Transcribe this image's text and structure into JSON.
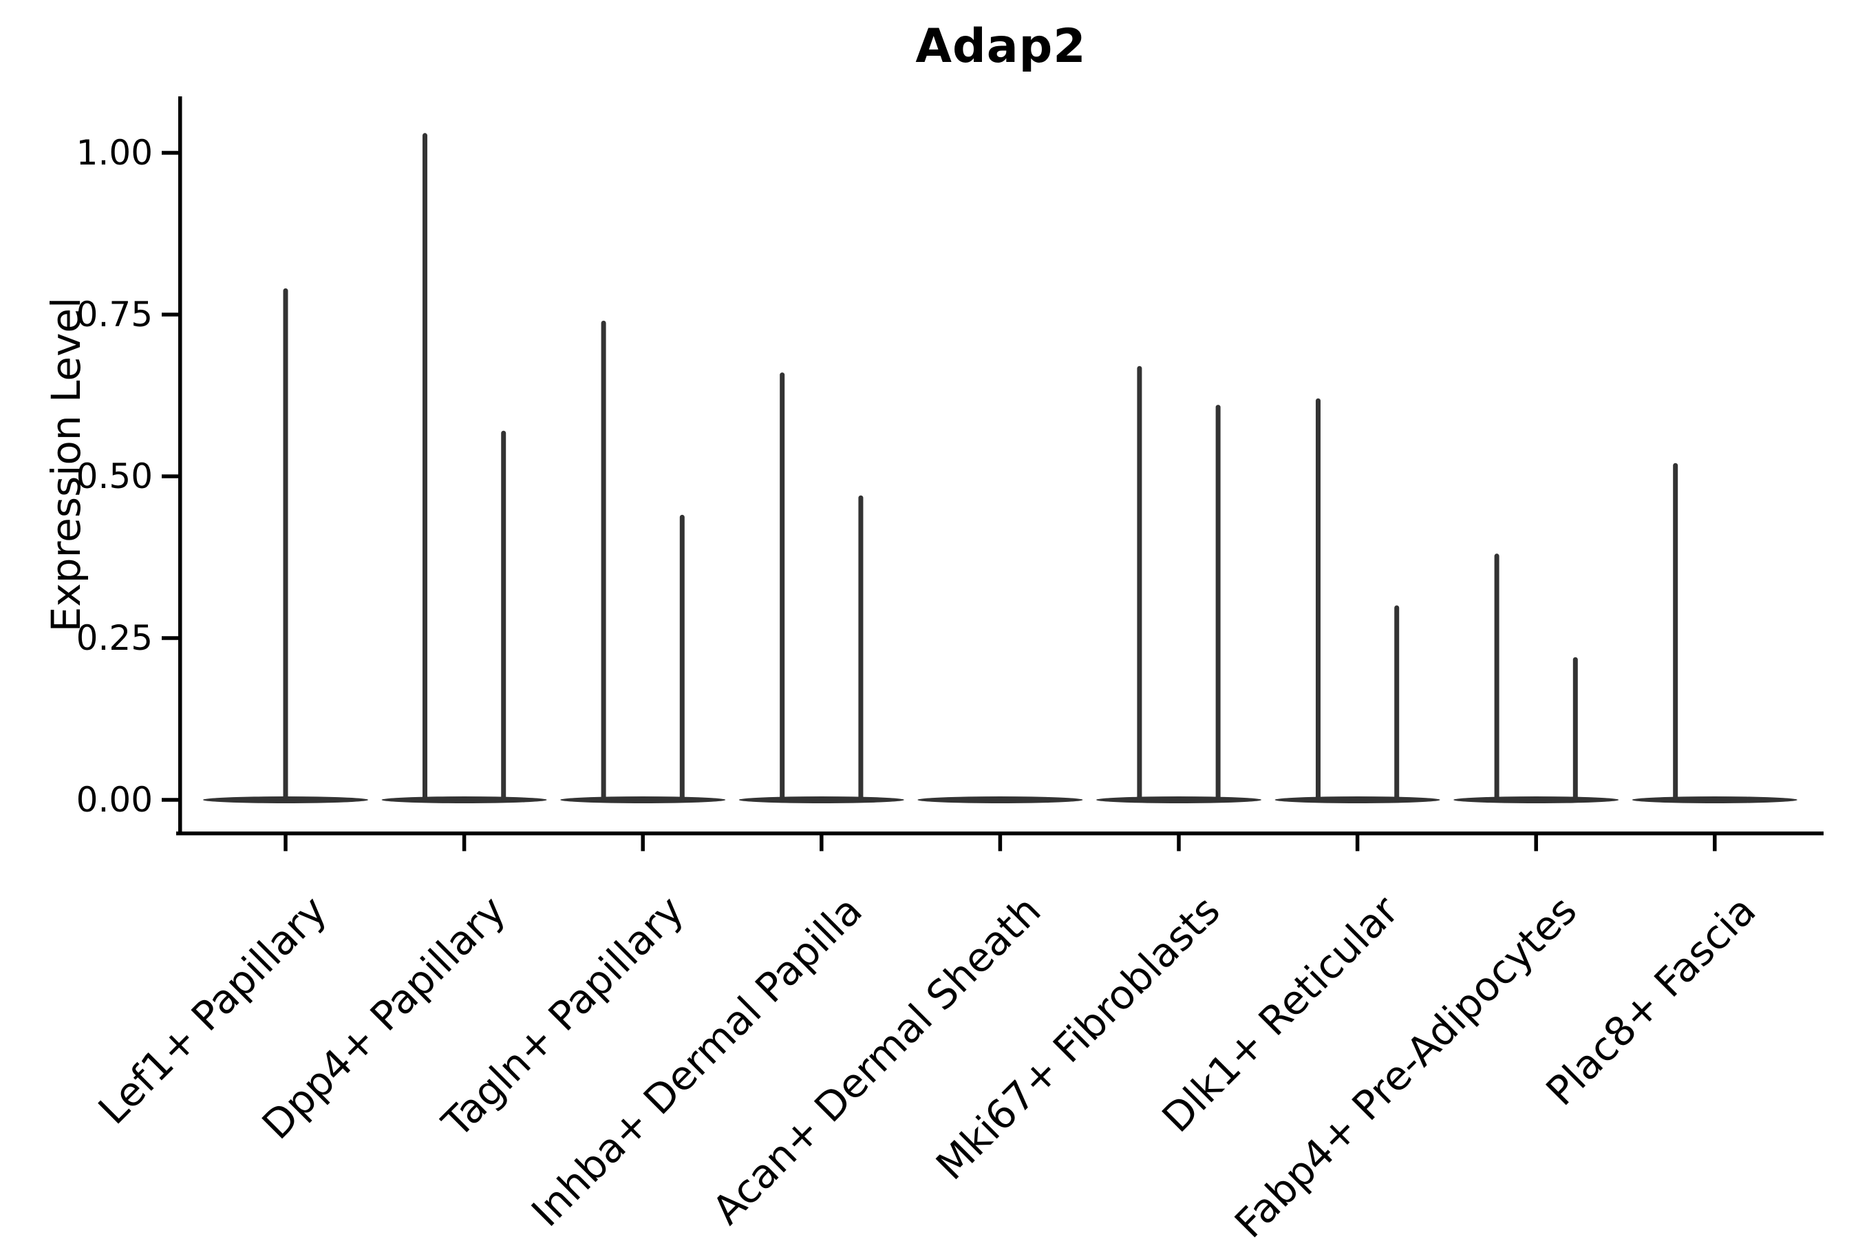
{
  "chart_data": {
    "type": "violin",
    "title": "Adap2",
    "xlabel": "",
    "ylabel": "Expression Level",
    "ytick_labels": [
      "1.00",
      "0.75",
      "0.50",
      "0.25",
      "0.00"
    ],
    "ytick_values": [
      1.0,
      0.75,
      0.5,
      0.25,
      0.0
    ],
    "ylim": [
      0,
      1.09
    ],
    "grid": false,
    "legend": "none",
    "x_tick_rotation_deg": 45,
    "categories": [
      "Lef1+ Papillary",
      "Dpp4+ Papillary",
      "Tagln+ Papillary",
      "Inhba+ Dermal Papilla",
      "Acan+ Dermal Sheath",
      "Mki67+ Fibroblasts",
      "Dlk1+ Reticular",
      "Fabp4+ Pre-Adipocytes",
      "Plac8+ Fascia"
    ],
    "violins": [
      {
        "category": "Lef1+ Papillary",
        "base_density_at": 0,
        "spikes": [
          {
            "offset": 0,
            "value": 0.79
          }
        ]
      },
      {
        "category": "Dpp4+ Papillary",
        "base_density_at": 0,
        "spikes": [
          {
            "offset": -0.22,
            "value": 1.03
          },
          {
            "offset": 0.22,
            "value": 0.57
          }
        ]
      },
      {
        "category": "Tagln+ Papillary",
        "base_density_at": 0,
        "spikes": [
          {
            "offset": -0.22,
            "value": 0.74
          },
          {
            "offset": 0.22,
            "value": 0.44
          }
        ]
      },
      {
        "category": "Inhba+ Dermal Papilla",
        "base_density_at": 0,
        "spikes": [
          {
            "offset": -0.22,
            "value": 0.66
          },
          {
            "offset": 0.22,
            "value": 0.47
          }
        ]
      },
      {
        "category": "Acan+ Dermal Sheath",
        "base_density_at": 0,
        "spikes": []
      },
      {
        "category": "Mki67+ Fibroblasts",
        "base_density_at": 0,
        "spikes": [
          {
            "offset": -0.22,
            "value": 0.67
          },
          {
            "offset": 0.22,
            "value": 0.61
          }
        ]
      },
      {
        "category": "Dlk1+ Reticular",
        "base_density_at": 0,
        "spikes": [
          {
            "offset": -0.22,
            "value": 0.62
          },
          {
            "offset": 0.22,
            "value": 0.3
          }
        ]
      },
      {
        "category": "Fabp4+ Pre-Adipocytes",
        "base_density_at": 0,
        "spikes": [
          {
            "offset": -0.22,
            "value": 0.38
          },
          {
            "offset": 0.22,
            "value": 0.22
          }
        ]
      },
      {
        "category": "Plac8+ Fascia",
        "base_density_at": 0,
        "spikes": [
          {
            "offset": -0.22,
            "value": 0.52
          }
        ]
      }
    ],
    "colors": {
      "violin_line": "#333333",
      "axis": "#000000",
      "text": "#000000",
      "background": "#ffffff"
    }
  }
}
